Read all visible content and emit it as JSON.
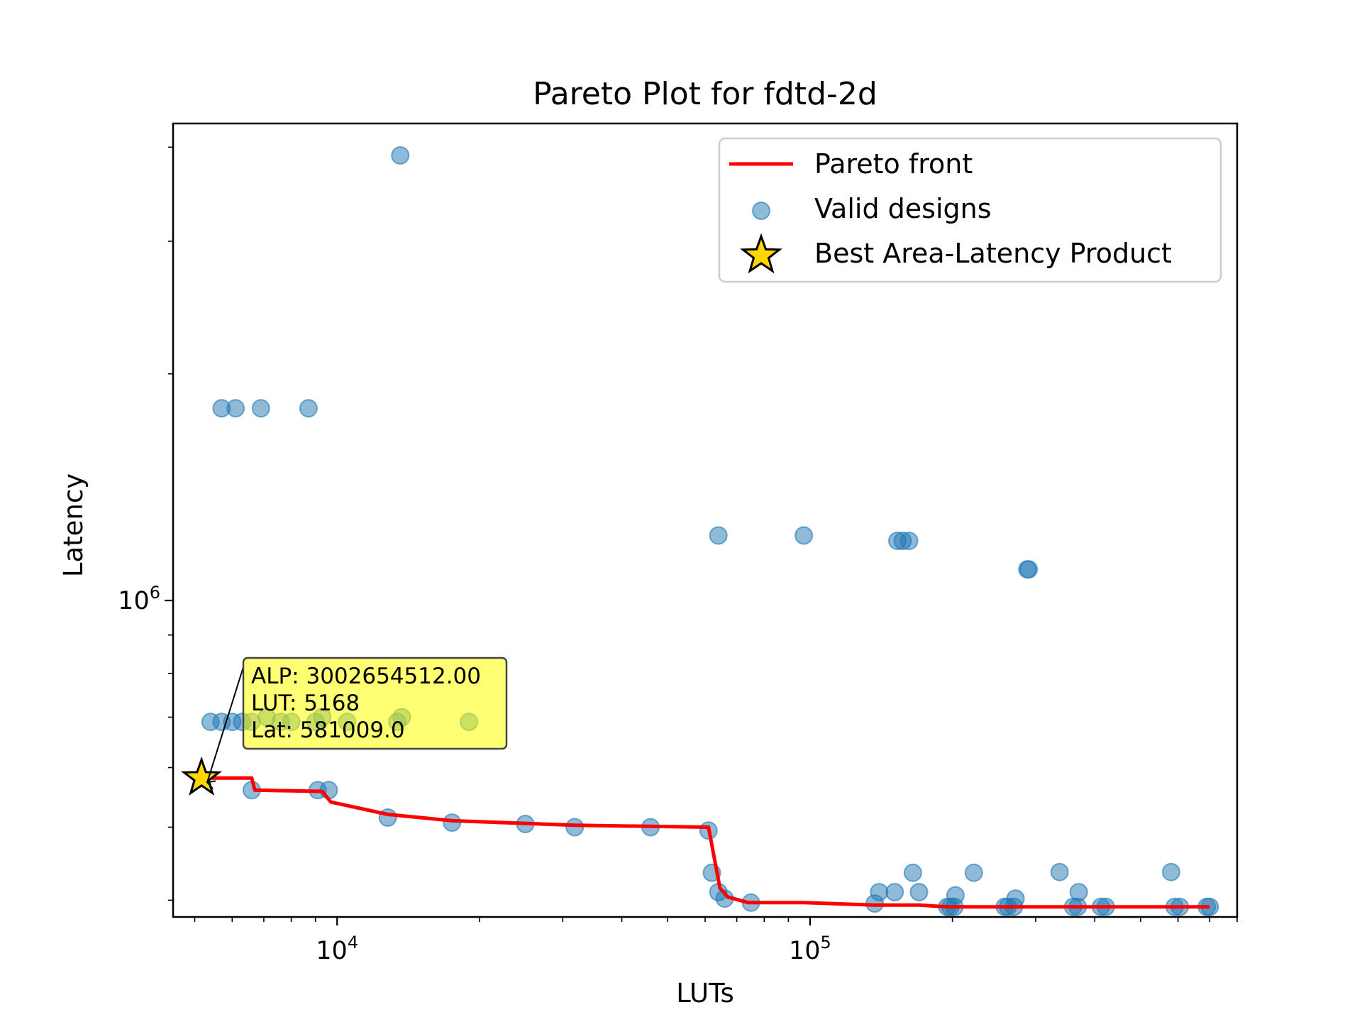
{
  "chart_data": {
    "type": "scatter",
    "title": "Pareto Plot for fdtd-2d",
    "xlabel": "LUTs",
    "ylabel": "Latency",
    "xscale": "log",
    "yscale": "log",
    "xlim": [
      4500,
      800000
    ],
    "ylim": [
      380000,
      4300000
    ],
    "x_ticks": [
      {
        "value": 10000,
        "base": "10",
        "exp": "4"
      },
      {
        "value": 100000,
        "base": "10",
        "exp": "5"
      }
    ],
    "y_ticks": [
      {
        "value": 1000000,
        "base": "10",
        "exp": "6"
      }
    ],
    "grid": false,
    "legend_position": "top-right",
    "colors": {
      "pareto": "#ff0000",
      "points": "#1f77b4",
      "star": "#ffd700",
      "annotation_bg": "#ffff00"
    },
    "series": [
      {
        "name": "Valid designs",
        "type": "scatter",
        "points": [
          [
            13600,
            3900000
          ],
          [
            5700,
            1800000
          ],
          [
            6100,
            1800000
          ],
          [
            6900,
            1800000
          ],
          [
            8700,
            1800000
          ],
          [
            64000,
            1220000
          ],
          [
            97000,
            1220000
          ],
          [
            153000,
            1200000
          ],
          [
            157000,
            1200000
          ],
          [
            162000,
            1200000
          ],
          [
            288000,
            1100000
          ],
          [
            290000,
            1100000
          ],
          [
            5400,
            690000
          ],
          [
            5700,
            690000
          ],
          [
            6000,
            690000
          ],
          [
            6300,
            690000
          ],
          [
            6600,
            690000
          ],
          [
            7100,
            700000
          ],
          [
            7600,
            690000
          ],
          [
            8000,
            690000
          ],
          [
            9000,
            690000
          ],
          [
            9300,
            700000
          ],
          [
            10500,
            690000
          ],
          [
            13400,
            690000
          ],
          [
            13700,
            700000
          ],
          [
            19000,
            690000
          ],
          [
            6600,
            560000
          ],
          [
            9100,
            560000
          ],
          [
            9600,
            560000
          ],
          [
            12800,
            515000
          ],
          [
            17500,
            507000
          ],
          [
            25000,
            505000
          ],
          [
            31800,
            500000
          ],
          [
            46000,
            500000
          ],
          [
            61000,
            495000
          ],
          [
            62000,
            435000
          ],
          [
            64000,
            410000
          ],
          [
            66000,
            402000
          ],
          [
            75000,
            397000
          ],
          [
            137000,
            396000
          ],
          [
            140000,
            410000
          ],
          [
            151000,
            410000
          ],
          [
            165000,
            435000
          ],
          [
            170000,
            410000
          ],
          [
            203000,
            406000
          ],
          [
            222000,
            435000
          ],
          [
            272000,
            402000
          ],
          [
            337000,
            436000
          ],
          [
            370000,
            410000
          ],
          [
            580000,
            436000
          ],
          [
            195000,
            392000
          ],
          [
            198000,
            392000
          ],
          [
            202000,
            392000
          ],
          [
            258000,
            392000
          ],
          [
            262000,
            392000
          ],
          [
            270000,
            392000
          ],
          [
            360000,
            392000
          ],
          [
            368000,
            392000
          ],
          [
            412000,
            392000
          ],
          [
            422000,
            392000
          ],
          [
            590000,
            392000
          ],
          [
            605000,
            392000
          ],
          [
            690000,
            392000
          ],
          [
            700000,
            392000
          ]
        ]
      },
      {
        "name": "Pareto front",
        "type": "line",
        "points": [
          [
            5168,
            581009
          ],
          [
            6600,
            581009
          ],
          [
            6700,
            560000
          ],
          [
            9300,
            558000
          ],
          [
            9700,
            540000
          ],
          [
            12800,
            520000
          ],
          [
            17500,
            510000
          ],
          [
            31800,
            503000
          ],
          [
            61000,
            500000
          ],
          [
            64500,
            415000
          ],
          [
            67000,
            404000
          ],
          [
            74000,
            397000
          ],
          [
            97000,
            397000
          ],
          [
            137000,
            394000
          ],
          [
            170000,
            394000
          ],
          [
            195000,
            392000
          ],
          [
            700000,
            392000
          ]
        ]
      },
      {
        "name": "Best Area-Latency Product",
        "type": "marker",
        "points": [
          [
            5168,
            581009
          ]
        ]
      }
    ],
    "annotation": {
      "lines": [
        "ALP: 3002654512.00",
        "LUT: 5168",
        "Lat: 581009.0"
      ]
    }
  }
}
